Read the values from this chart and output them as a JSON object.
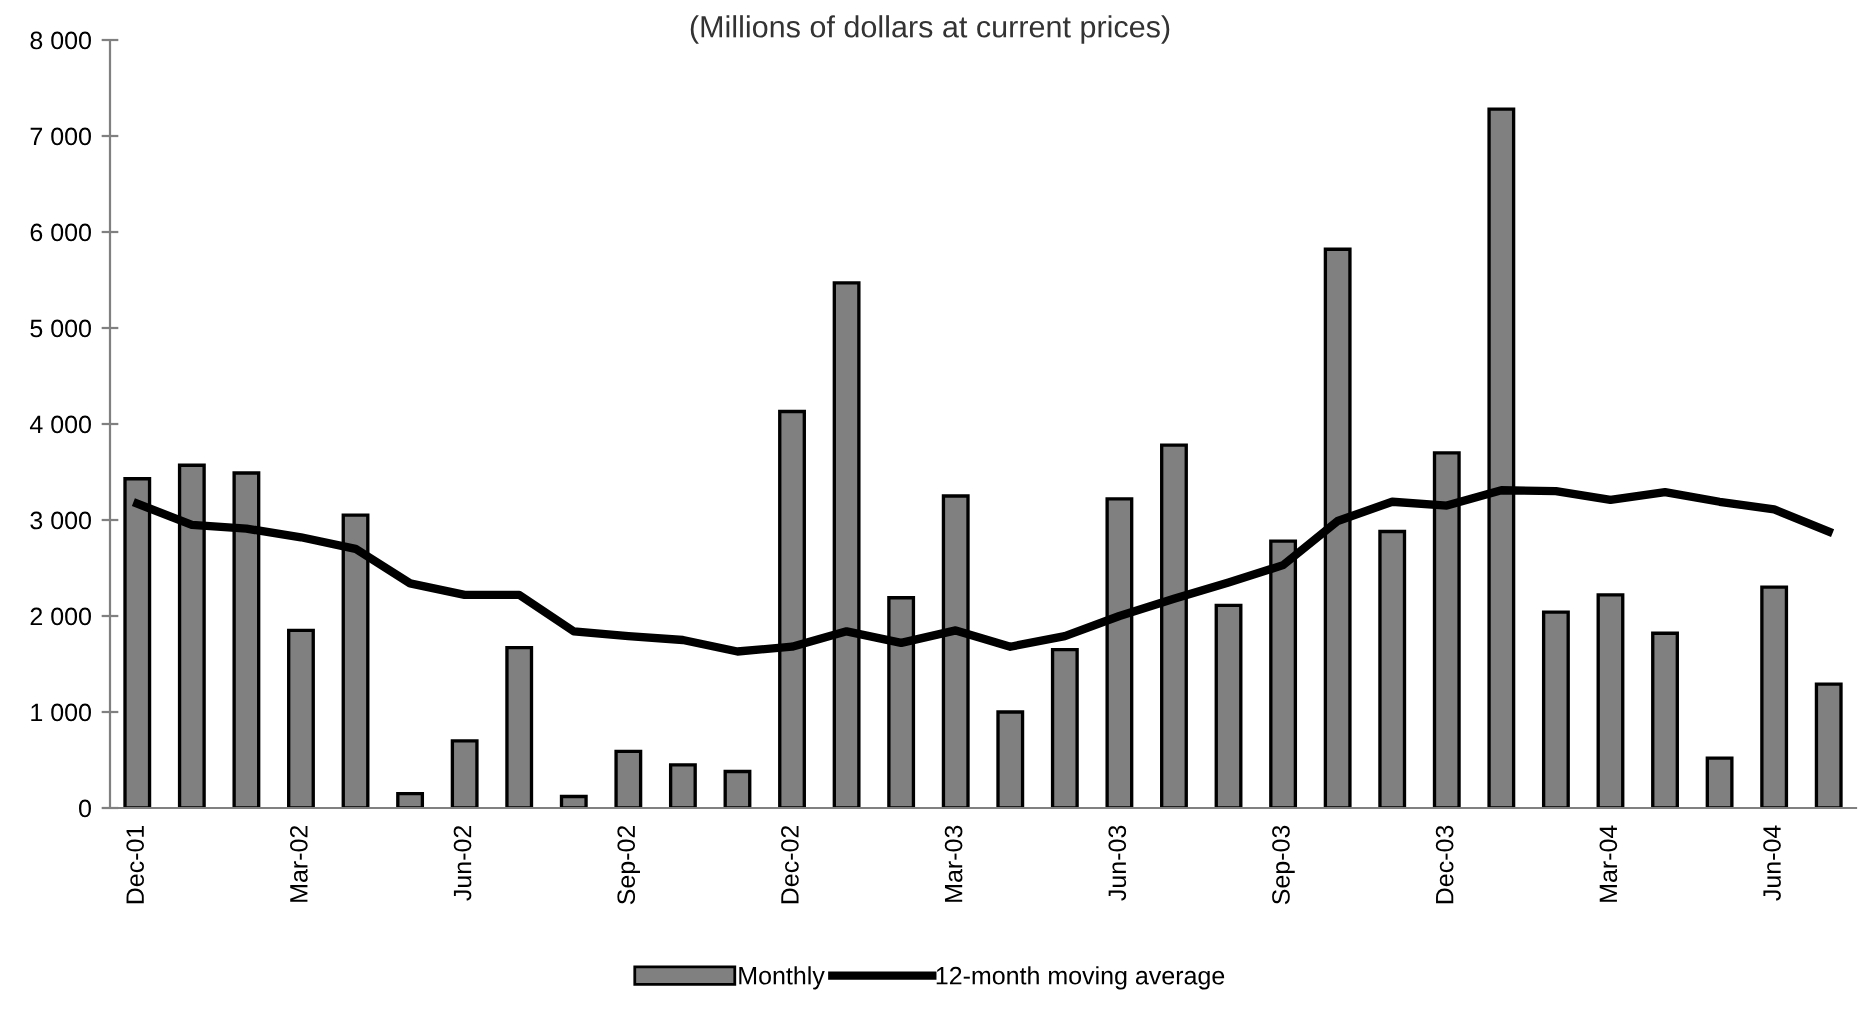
{
  "chart_data": {
    "type": "bar",
    "subtitle": "(Millions of dollars at current prices)",
    "categories": [
      "Dec-01",
      null,
      null,
      "Mar-02",
      null,
      null,
      "Jun-02",
      null,
      null,
      "Sep-02",
      null,
      null,
      "Dec-02",
      null,
      null,
      "Mar-03",
      null,
      null,
      "Jun-03",
      null,
      null,
      "Sep-03",
      null,
      null,
      "Dec-03",
      null,
      null,
      "Mar-04",
      null,
      null,
      "Jun-04",
      null
    ],
    "series": [
      {
        "name": "Monthly",
        "color": "#808080",
        "values": [
          3430,
          3570,
          3490,
          1850,
          3050,
          150,
          700,
          1670,
          120,
          590,
          450,
          380,
          4130,
          5470,
          2190,
          3250,
          1000,
          1650,
          3220,
          3780,
          2110,
          2780,
          5820,
          2880,
          3700,
          7280,
          2040,
          2220,
          1820,
          520,
          2300,
          1290
        ]
      },
      {
        "name": "12-month moving average",
        "type": "line",
        "color": "#000000",
        "values": [
          3170,
          2950,
          2910,
          2820,
          2700,
          2340,
          2220,
          2220,
          1840,
          1790,
          1750,
          1630,
          1680,
          1840,
          1720,
          1850,
          1680,
          1790,
          2000,
          2180,
          2350,
          2530,
          2990,
          3190,
          3150,
          3310,
          3300,
          3210,
          3290,
          3190,
          3110,
          2880
        ]
      }
    ],
    "ylim": [
      0,
      8000
    ],
    "yticks": [
      {
        "value": 0,
        "label": "0"
      },
      {
        "value": 1000,
        "label": "1 000"
      },
      {
        "value": 2000,
        "label": "2 000"
      },
      {
        "value": 3000,
        "label": "3 000"
      },
      {
        "value": 4000,
        "label": "4 000"
      },
      {
        "value": 5000,
        "label": "5 000"
      },
      {
        "value": 6000,
        "label": "6 000"
      },
      {
        "value": 7000,
        "label": "7 000"
      },
      {
        "value": 8000,
        "label": "8 000"
      }
    ],
    "grid": false,
    "legend": "bottom",
    "marker": "none",
    "line_style": "solid"
  }
}
